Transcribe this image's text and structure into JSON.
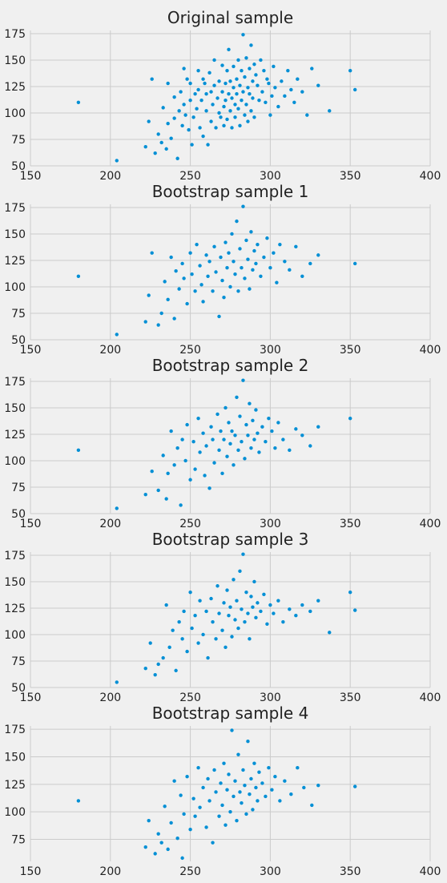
{
  "style": {
    "background": "#f0f0f0",
    "grid_color": "#cbcbcb",
    "point_color": "#008fd5",
    "text_color": "#222222"
  },
  "chart_data": [
    {
      "type": "scatter",
      "title": "Original sample",
      "xlim": [
        150,
        400
      ],
      "ylim": [
        50,
        178
      ],
      "xticks": [
        150,
        200,
        250,
        300,
        350,
        400
      ],
      "yticks": [
        50,
        75,
        100,
        125,
        150,
        175
      ],
      "grid": true,
      "x": [
        180,
        204,
        222,
        224,
        226,
        228,
        230,
        232,
        233,
        235,
        236,
        236,
        238,
        240,
        240,
        242,
        243,
        244,
        245,
        246,
        246,
        247,
        248,
        249,
        250,
        250,
        251,
        252,
        253,
        254,
        255,
        255,
        256,
        257,
        258,
        258,
        259,
        260,
        260,
        261,
        262,
        263,
        263,
        264,
        265,
        265,
        266,
        267,
        268,
        268,
        269,
        270,
        270,
        271,
        271,
        272,
        272,
        273,
        273,
        274,
        274,
        275,
        275,
        276,
        276,
        277,
        277,
        278,
        278,
        279,
        279,
        280,
        280,
        281,
        281,
        282,
        282,
        283,
        283,
        284,
        284,
        285,
        285,
        286,
        286,
        287,
        287,
        288,
        288,
        289,
        289,
        290,
        290,
        291,
        292,
        293,
        294,
        295,
        296,
        297,
        298,
        299,
        300,
        301,
        302,
        303,
        305,
        307,
        309,
        311,
        313,
        315,
        317,
        320,
        323,
        326,
        330,
        350,
        353,
        337
      ],
      "y": [
        110,
        55,
        68,
        92,
        132,
        62,
        80,
        72,
        105,
        66,
        90,
        128,
        76,
        115,
        95,
        57,
        102,
        120,
        88,
        108,
        142,
        98,
        132,
        84,
        112,
        128,
        70,
        96,
        118,
        104,
        122,
        140,
        86,
        112,
        132,
        78,
        128,
        102,
        118,
        70,
        138,
        92,
        120,
        108,
        126,
        150,
        86,
        114,
        100,
        130,
        96,
        120,
        145,
        106,
        88,
        128,
        112,
        140,
        94,
        118,
        160,
        102,
        130,
        86,
        114,
        124,
        144,
        108,
        96,
        132,
        118,
        150,
        104,
        126,
        88,
        140,
        112,
        174,
        120,
        98,
        134,
        108,
        152,
        124,
        92,
        142,
        118,
        164,
        102,
        130,
        114,
        146,
        96,
        136,
        126,
        112,
        150,
        120,
        140,
        110,
        132,
        128,
        98,
        116,
        144,
        124,
        106,
        130,
        116,
        140,
        122,
        110,
        132,
        120,
        98,
        142,
        126,
        140,
        122,
        102
      ]
    },
    {
      "type": "scatter",
      "title": "Bootstrap sample 1",
      "xlim": [
        150,
        400
      ],
      "ylim": [
        50,
        178
      ],
      "xticks": [
        150,
        200,
        250,
        300,
        350,
        400
      ],
      "yticks": [
        50,
        75,
        100,
        125,
        150,
        175
      ],
      "grid": true,
      "x": [
        180,
        204,
        222,
        224,
        226,
        230,
        232,
        234,
        236,
        238,
        240,
        241,
        243,
        245,
        246,
        248,
        250,
        251,
        253,
        254,
        256,
        257,
        258,
        260,
        261,
        262,
        264,
        265,
        266,
        268,
        269,
        270,
        271,
        272,
        273,
        274,
        275,
        276,
        277,
        278,
        279,
        280,
        281,
        282,
        283,
        284,
        285,
        286,
        287,
        288,
        289,
        290,
        291,
        292,
        294,
        296,
        298,
        300,
        302,
        304,
        306,
        309,
        312,
        316,
        320,
        325,
        330,
        353
      ],
      "y": [
        110,
        55,
        67,
        92,
        132,
        64,
        75,
        105,
        88,
        128,
        70,
        115,
        98,
        122,
        108,
        84,
        132,
        112,
        96,
        140,
        120,
        102,
        86,
        130,
        110,
        124,
        96,
        138,
        114,
        72,
        128,
        106,
        90,
        142,
        118,
        132,
        100,
        150,
        124,
        112,
        162,
        96,
        136,
        118,
        176,
        108,
        144,
        126,
        98,
        152,
        116,
        134,
        122,
        140,
        110,
        128,
        146,
        118,
        132,
        104,
        140,
        124,
        116,
        138,
        110,
        122,
        130,
        122
      ]
    },
    {
      "type": "scatter",
      "title": "Bootstrap sample 2",
      "xlim": [
        150,
        400
      ],
      "ylim": [
        50,
        178
      ],
      "xticks": [
        150,
        200,
        250,
        300,
        350,
        400
      ],
      "yticks": [
        50,
        75,
        100,
        125,
        150,
        175
      ],
      "grid": true,
      "x": [
        180,
        204,
        222,
        226,
        230,
        233,
        235,
        236,
        238,
        240,
        242,
        244,
        245,
        247,
        248,
        250,
        252,
        253,
        255,
        256,
        258,
        259,
        260,
        262,
        263,
        264,
        265,
        267,
        268,
        269,
        270,
        271,
        272,
        273,
        274,
        275,
        276,
        277,
        278,
        279,
        280,
        281,
        282,
        283,
        284,
        285,
        286,
        287,
        288,
        289,
        290,
        291,
        292,
        293,
        295,
        297,
        299,
        301,
        303,
        305,
        308,
        312,
        316,
        320,
        325,
        330,
        350
      ],
      "y": [
        110,
        55,
        68,
        90,
        72,
        105,
        64,
        88,
        128,
        96,
        112,
        58,
        120,
        100,
        134,
        82,
        118,
        92,
        140,
        108,
        126,
        86,
        114,
        74,
        132,
        120,
        98,
        144,
        110,
        128,
        88,
        120,
        150,
        104,
        136,
        116,
        128,
        96,
        124,
        160,
        110,
        142,
        118,
        176,
        102,
        134,
        124,
        154,
        112,
        138,
        120,
        148,
        126,
        108,
        132,
        118,
        140,
        128,
        112,
        136,
        120,
        110,
        130,
        124,
        114,
        132,
        140
      ]
    },
    {
      "type": "scatter",
      "title": "Bootstrap sample 3",
      "xlim": [
        150,
        400
      ],
      "ylim": [
        50,
        178
      ],
      "xticks": [
        150,
        200,
        250,
        300,
        350,
        400
      ],
      "yticks": [
        50,
        75,
        100,
        125,
        150,
        175
      ],
      "grid": true,
      "x": [
        204,
        222,
        225,
        228,
        230,
        233,
        235,
        237,
        239,
        241,
        243,
        245,
        246,
        248,
        250,
        251,
        253,
        255,
        256,
        258,
        260,
        261,
        263,
        264,
        266,
        267,
        268,
        270,
        271,
        272,
        273,
        274,
        275,
        276,
        277,
        278,
        279,
        280,
        281,
        282,
        283,
        284,
        285,
        286,
        287,
        288,
        289,
        290,
        291,
        292,
        294,
        296,
        298,
        300,
        302,
        305,
        308,
        312,
        316,
        320,
        325,
        330,
        337,
        350,
        353
      ],
      "y": [
        55,
        68,
        92,
        62,
        72,
        78,
        128,
        88,
        104,
        66,
        112,
        96,
        122,
        84,
        140,
        106,
        118,
        92,
        132,
        100,
        122,
        78,
        134,
        112,
        96,
        146,
        120,
        104,
        130,
        88,
        142,
        118,
        126,
        98,
        152,
        114,
        132,
        106,
        160,
        124,
        176,
        112,
        140,
        120,
        96,
        136,
        126,
        150,
        116,
        130,
        122,
        138,
        110,
        128,
        120,
        132,
        112,
        124,
        118,
        128,
        122,
        132,
        102,
        140,
        123
      ]
    },
    {
      "type": "scatter",
      "title": "Bootstrap sample 4",
      "xlim": [
        150,
        400
      ],
      "ylim": [
        55,
        178
      ],
      "xticks": [
        150,
        200,
        250,
        300,
        350,
        400
      ],
      "yticks": [
        75,
        100,
        125,
        150,
        175
      ],
      "grid": true,
      "x": [
        180,
        222,
        224,
        228,
        230,
        232,
        234,
        236,
        238,
        240,
        242,
        244,
        245,
        246,
        248,
        250,
        252,
        253,
        255,
        256,
        258,
        260,
        261,
        262,
        264,
        265,
        266,
        268,
        269,
        270,
        271,
        272,
        273,
        274,
        275,
        276,
        277,
        278,
        279,
        280,
        281,
        282,
        283,
        284,
        285,
        286,
        287,
        288,
        289,
        290,
        291,
        292,
        293,
        295,
        297,
        299,
        301,
        303,
        306,
        309,
        313,
        317,
        321,
        326,
        330,
        353
      ],
      "y": [
        110,
        68,
        92,
        62,
        80,
        72,
        105,
        66,
        90,
        128,
        76,
        115,
        58,
        98,
        132,
        84,
        112,
        96,
        140,
        104,
        122,
        86,
        130,
        110,
        72,
        138,
        118,
        96,
        126,
        106,
        144,
        88,
        120,
        134,
        100,
        174,
        114,
        128,
        92,
        152,
        118,
        108,
        138,
        124,
        98,
        164,
        116,
        130,
        102,
        144,
        122,
        110,
        136,
        126,
        114,
        140,
        120,
        132,
        110,
        128,
        116,
        140,
        122,
        106,
        124,
        123
      ]
    }
  ]
}
